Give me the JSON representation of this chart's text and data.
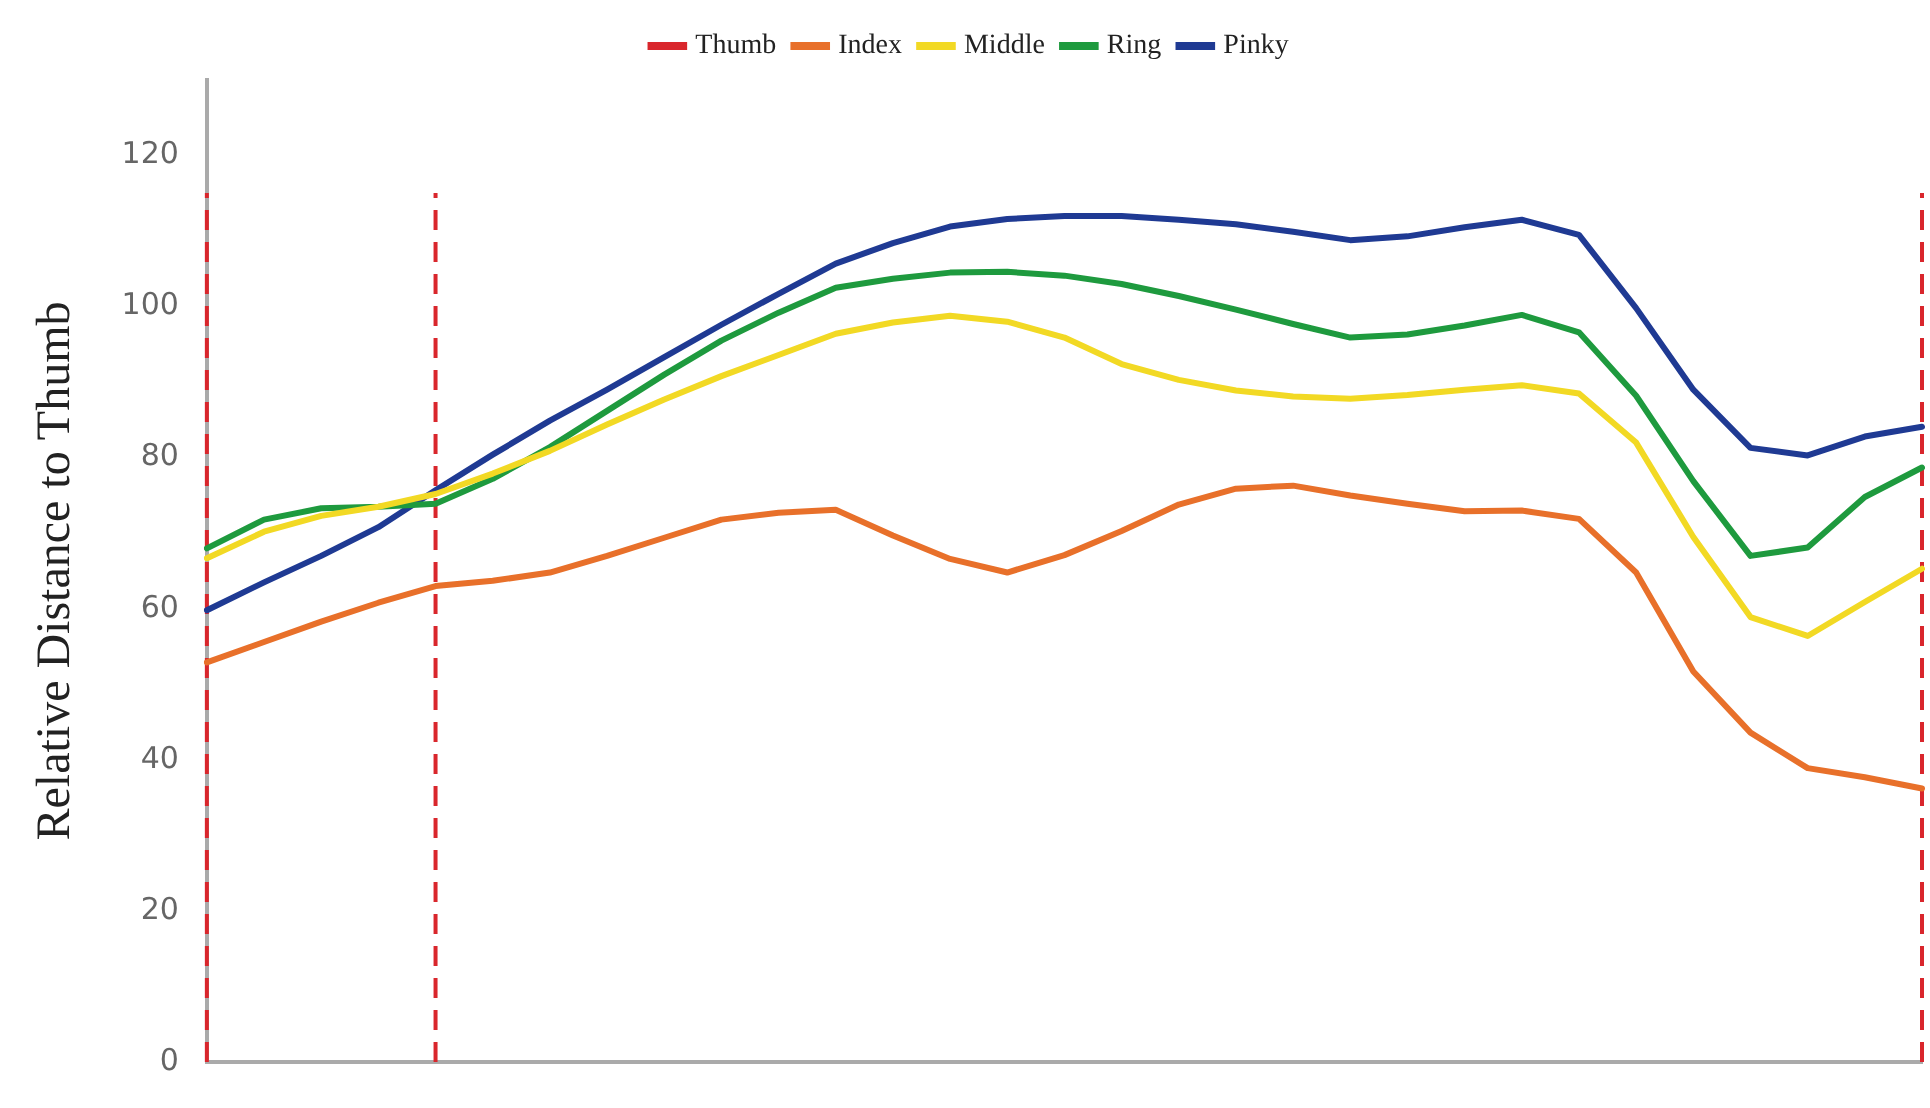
{
  "chart_data": {
    "type": "line",
    "ylabel": "Relative Distance to Thumb",
    "ylim": [
      0,
      130
    ],
    "yticks": [
      0,
      20,
      40,
      60,
      80,
      100,
      120
    ],
    "tick_labels": "y",
    "grid": false,
    "legend": "top",
    "marker": "none",
    "line_style": "solid",
    "categories": [
      null,
      null,
      null,
      null,
      null,
      null,
      null,
      null,
      null,
      null,
      null,
      null,
      null,
      null,
      null,
      null,
      null,
      null,
      null,
      null,
      null,
      null,
      null,
      null,
      null,
      null,
      null,
      null,
      null,
      null,
      null
    ],
    "series": [
      {
        "name": "Thumb",
        "color": "#d9262c",
        "line_style": "dashed",
        "values": [
          null,
          null,
          null,
          null,
          null,
          null,
          null,
          null,
          null,
          null,
          null,
          null,
          null,
          null,
          null,
          null,
          null,
          null,
          null,
          null,
          null,
          null,
          null,
          null,
          null,
          null,
          null,
          null,
          null,
          null,
          null
        ]
      },
      {
        "name": "Index",
        "color": "#e8702a",
        "values": [
          52.9,
          55.6,
          58.3,
          60.8,
          63,
          63.7,
          64.8,
          67,
          69.4,
          71.8,
          72.7,
          73.1,
          69.7,
          66.6,
          64.8,
          67.1,
          70.3,
          73.8,
          75.9,
          76.3,
          75,
          73.9,
          72.9,
          73,
          71.9,
          64.8,
          51.7,
          43.6,
          38.9,
          37.7,
          36.2
        ]
      },
      {
        "name": "Middle",
        "color": "#f2d924",
        "values": [
          66.7,
          70.2,
          72.3,
          73.5,
          75.2,
          77.9,
          80.9,
          84.4,
          87.7,
          90.8,
          93.6,
          96.4,
          97.9,
          98.8,
          98,
          95.9,
          92.4,
          90.3,
          88.9,
          88.1,
          87.8,
          88.3,
          89,
          89.6,
          88.5,
          82,
          69.5,
          58.9,
          56.4,
          60.9,
          65.3
        ]
      },
      {
        "name": "Ring",
        "color": "#1e9a3e",
        "values": [
          68,
          71.8,
          73.3,
          73.5,
          73.9,
          77.2,
          81.4,
          86.2,
          91,
          95.5,
          99.2,
          102.5,
          103.7,
          104.5,
          104.6,
          104.1,
          103,
          101.4,
          99.6,
          97.7,
          95.9,
          96.3,
          97.5,
          98.9,
          96.6,
          88.2,
          76.9,
          67,
          68.1,
          74.8,
          78.7
        ]
      },
      {
        "name": "Pinky",
        "color": "#1f3a93",
        "values": [
          59.8,
          63.5,
          67,
          70.8,
          75.7,
          80.4,
          84.9,
          89,
          93.3,
          97.6,
          101.7,
          105.7,
          108.4,
          110.6,
          111.6,
          112,
          112,
          111.5,
          110.9,
          109.9,
          108.8,
          109.3,
          110.5,
          111.5,
          109.5,
          99.8,
          89,
          81.3,
          80.3,
          82.8,
          84.1
        ]
      }
    ]
  }
}
